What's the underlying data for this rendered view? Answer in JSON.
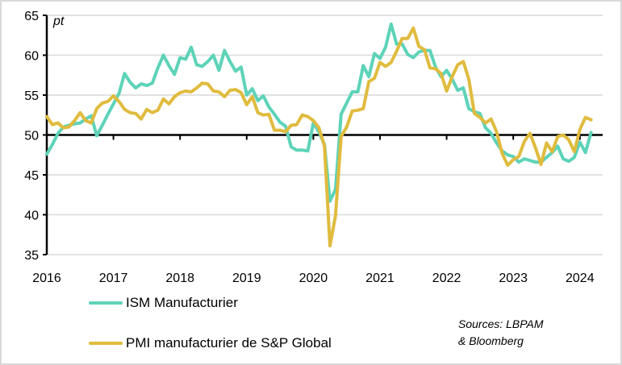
{
  "chart_data": {
    "type": "line",
    "ylabel": "pt",
    "ylim": [
      35,
      65
    ],
    "yticks": [
      "35",
      "40",
      "45",
      "50",
      "55",
      "60",
      "65"
    ],
    "xticks": [
      "2016",
      "2017",
      "2018",
      "2019",
      "2020",
      "2021",
      "2022",
      "2023",
      "2024"
    ],
    "x_start": "2016-01",
    "frequency": "monthly",
    "grid": true,
    "legend_position": "bottom-left",
    "series": [
      {
        "name": "ISM Manufacturier",
        "color": "#5dd3b8",
        "values": [
          47.6,
          48.8,
          50.2,
          51.0,
          51.2,
          51.4,
          51.5,
          52.0,
          52.4,
          49.9,
          51.2,
          52.6,
          53.9,
          55.2,
          57.7,
          56.6,
          55.9,
          56.4,
          56.2,
          56.5,
          58.4,
          60.0,
          58.7,
          57.6,
          59.7,
          59.5,
          61.0,
          58.8,
          58.6,
          59.2,
          60.0,
          58.1,
          60.6,
          59.2,
          58.0,
          58.5,
          55.0,
          55.8,
          54.3,
          54.9,
          53.5,
          52.6,
          51.6,
          51.1,
          48.5,
          48.1,
          48.1,
          48.0,
          51.5,
          50.4,
          48.8,
          41.7,
          43.2,
          52.6,
          54.0,
          55.4,
          55.4,
          58.7,
          57.3,
          60.2,
          59.6,
          61.0,
          63.9,
          61.4,
          61.4,
          60.1,
          59.7,
          60.4,
          60.6,
          60.6,
          58.5,
          57.3,
          58.1,
          57.0,
          55.6,
          55.9,
          53.3,
          52.9,
          52.7,
          50.9,
          50.2,
          49.0,
          48.0,
          47.5,
          47.3,
          46.6,
          47.0,
          46.8,
          46.6,
          46.6,
          47.2,
          47.8,
          48.6,
          47.0,
          46.7,
          47.2,
          49.1,
          47.8,
          50.3
        ]
      },
      {
        "name": "PMI manufacturier de S&P Global",
        "color": "#e0bb3e",
        "values": [
          52.3,
          51.3,
          51.5,
          50.9,
          51.0,
          51.8,
          52.8,
          51.8,
          51.5,
          53.3,
          54.0,
          54.2,
          54.9,
          54.2,
          53.2,
          52.8,
          52.7,
          52.0,
          53.2,
          52.8,
          53.1,
          54.5,
          53.9,
          54.8,
          55.3,
          55.5,
          55.4,
          55.9,
          56.5,
          56.4,
          55.5,
          55.4,
          54.8,
          55.6,
          55.7,
          55.3,
          53.8,
          54.8,
          52.8,
          52.5,
          52.6,
          50.6,
          50.6,
          50.4,
          51.2,
          51.3,
          52.5,
          52.3,
          51.8,
          50.9,
          48.6,
          36.1,
          39.9,
          49.8,
          51.0,
          53.0,
          53.1,
          53.3,
          56.7,
          57.1,
          59.1,
          58.6,
          59.1,
          60.5,
          62.1,
          62.1,
          63.4,
          61.1,
          60.7,
          58.4,
          58.3,
          57.7,
          55.5,
          57.3,
          58.8,
          59.2,
          57.0,
          52.7,
          52.2,
          51.5,
          52.0,
          50.4,
          47.7,
          46.2,
          46.9,
          47.3,
          49.2,
          50.2,
          48.4,
          46.3,
          49.0,
          47.9,
          49.8,
          50.0,
          49.4,
          47.9,
          50.7,
          52.2,
          51.9
        ]
      }
    ]
  },
  "sources": "Sources: LBPAM & Bloomberg"
}
